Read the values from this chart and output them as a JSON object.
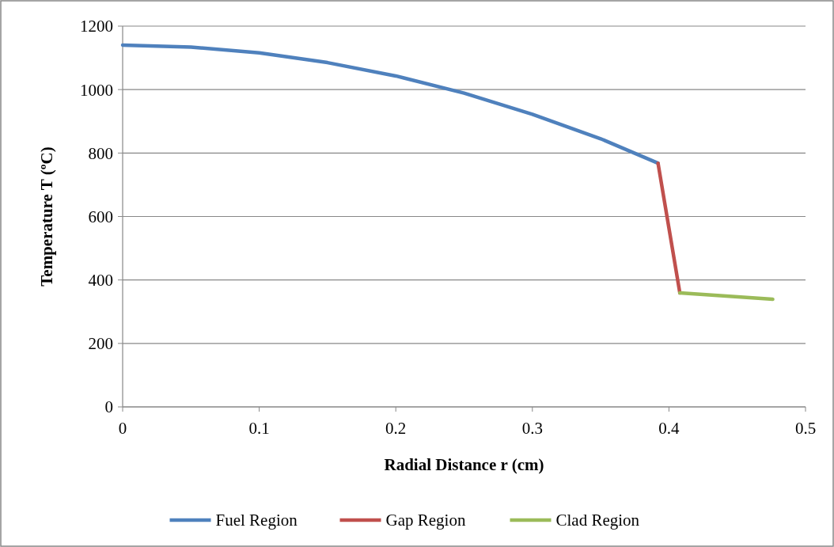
{
  "chart_data": {
    "type": "line",
    "xlabel": "Radial Distance r (cm)",
    "ylabel": "Temperature T (ºC)",
    "xlim": [
      0,
      0.5
    ],
    "xticks": [
      0,
      0.1,
      0.2,
      0.3,
      0.4,
      0.5
    ],
    "ylim": [
      0,
      1200
    ],
    "yticks": [
      0,
      200,
      400,
      600,
      800,
      1000,
      1200
    ],
    "grid": "y",
    "legend": "bottom",
    "marker": "none",
    "line_style": "solid",
    "series": [
      {
        "name": "Fuel Region",
        "color": "#4f81bd",
        "x": [
          0,
          0.05,
          0.1,
          0.15,
          0.2,
          0.25,
          0.3,
          0.35,
          0.392
        ],
        "values": [
          1140,
          1134,
          1116,
          1085,
          1043,
          989,
          922,
          845,
          768
        ]
      },
      {
        "name": "Gap Region",
        "color": "#c0504d",
        "x": [
          0.392,
          0.408
        ],
        "values": [
          768,
          359
        ]
      },
      {
        "name": "Clad Region",
        "color": "#9bbb59",
        "x": [
          0.408,
          0.476
        ],
        "values": [
          359,
          339
        ]
      }
    ]
  }
}
